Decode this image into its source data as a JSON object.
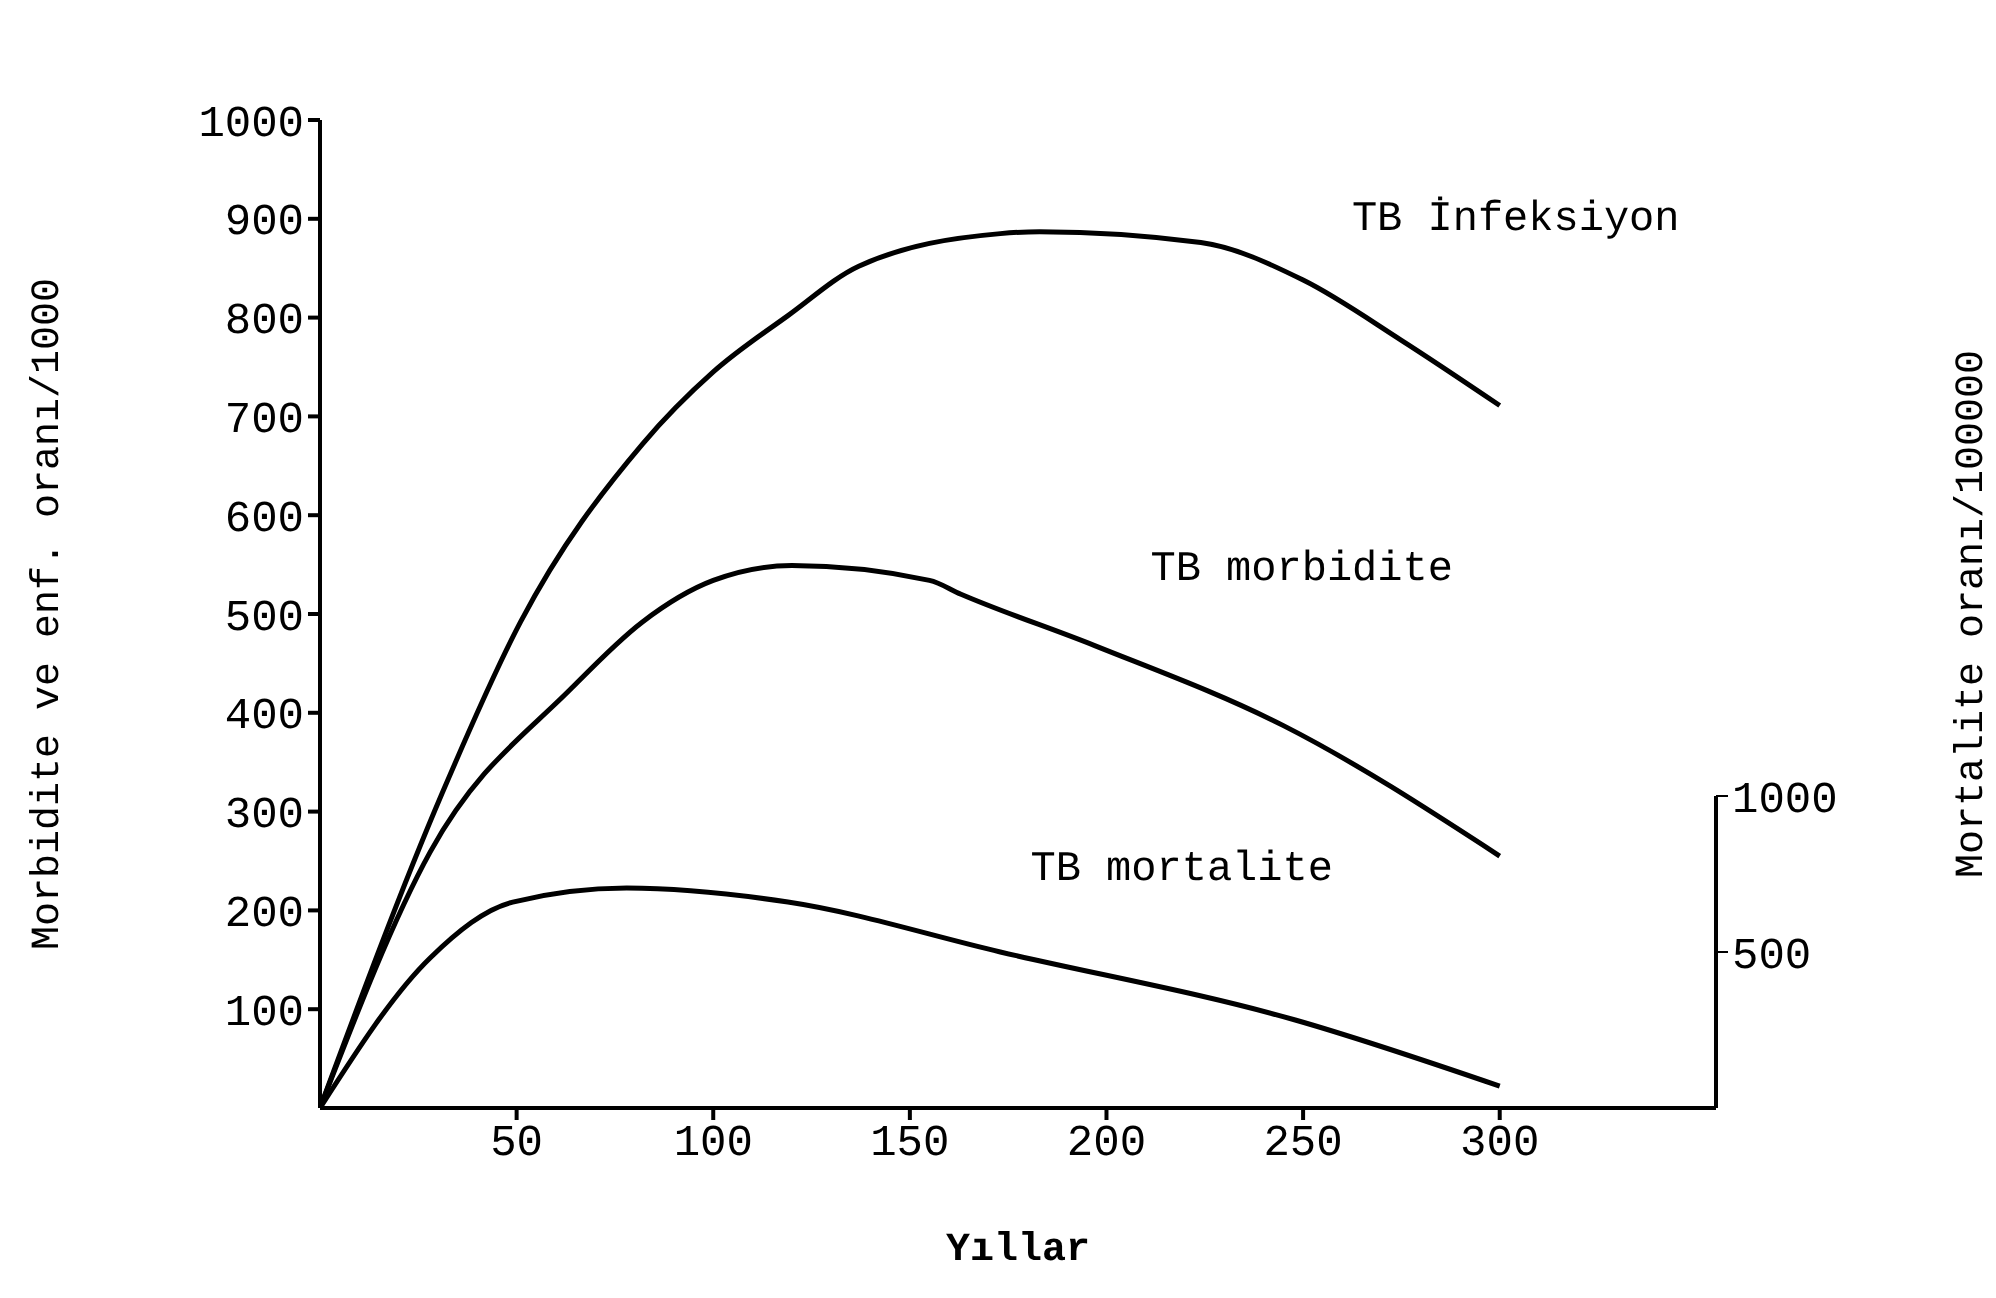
{
  "chart_data": {
    "type": "line",
    "xlabel": "Yıllar",
    "ylabel": "Morbidite ve enf. oranı/1000",
    "y2label": "Mortalite oranı/100000",
    "xlim": [
      0,
      355
    ],
    "xticks": [
      50,
      100,
      150,
      200,
      250,
      300
    ],
    "ylim": [
      0,
      1000
    ],
    "yticks": [
      100,
      200,
      300,
      400,
      500,
      600,
      700,
      800,
      900,
      1000
    ],
    "y2lim": [
      0,
      1000
    ],
    "y2ticks": [
      500,
      1000
    ],
    "marker": "none",
    "line_style": "solid",
    "series": [
      {
        "name": "TB İnfeksiyon",
        "color": "#000000",
        "x": [
          0,
          31,
          51,
          82,
          100,
          119,
          137,
          173,
          183,
          224,
          250,
          275,
          300
        ],
        "values": [
          0,
          318,
          492,
          672,
          745,
          802,
          852,
          885,
          887,
          876,
          838,
          777,
          711
        ]
      },
      {
        "name": "TB morbidite",
        "color": "#000000",
        "x": [
          0,
          28,
          64,
          82,
          100,
          120,
          155,
          163,
          197,
          245,
          300
        ],
        "values": [
          0,
          259,
          425,
          492,
          534,
          549,
          534,
          520,
          468,
          387,
          255
        ]
      },
      {
        "name": "TB mortalite",
        "color": "#000000",
        "axis": "y2",
        "x": [
          0,
          28,
          49,
          78,
          119,
          173,
          248,
          300
        ],
        "values": [
          0,
          481,
          660,
          705,
          660,
          500,
          282,
          70
        ]
      }
    ]
  }
}
